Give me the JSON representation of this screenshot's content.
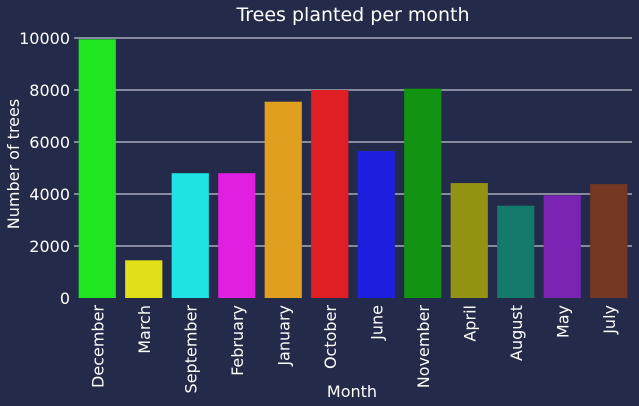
{
  "chart_data": {
    "type": "bar",
    "title": "Trees planted per month",
    "xlabel": "Month",
    "ylabel": "Number of trees",
    "ylim": [
      0,
      10000
    ],
    "yticks": [
      0,
      2000,
      4000,
      6000,
      8000,
      10000
    ],
    "grid": true,
    "categories": [
      "December",
      "March",
      "September",
      "February",
      "January",
      "October",
      "June",
      "November",
      "April",
      "August",
      "May",
      "July"
    ],
    "values": [
      9950,
      1450,
      4800,
      4800,
      7550,
      8000,
      5650,
      8050,
      4420,
      3550,
      3950,
      4380
    ],
    "colors": [
      "#1fe621",
      "#e0e01a",
      "#1fe3e3",
      "#e01fe0",
      "#e09f1f",
      "#e01f24",
      "#1f1fe0",
      "#129412",
      "#929213",
      "#147a6a",
      "#7a24b3",
      "#733722"
    ]
  }
}
